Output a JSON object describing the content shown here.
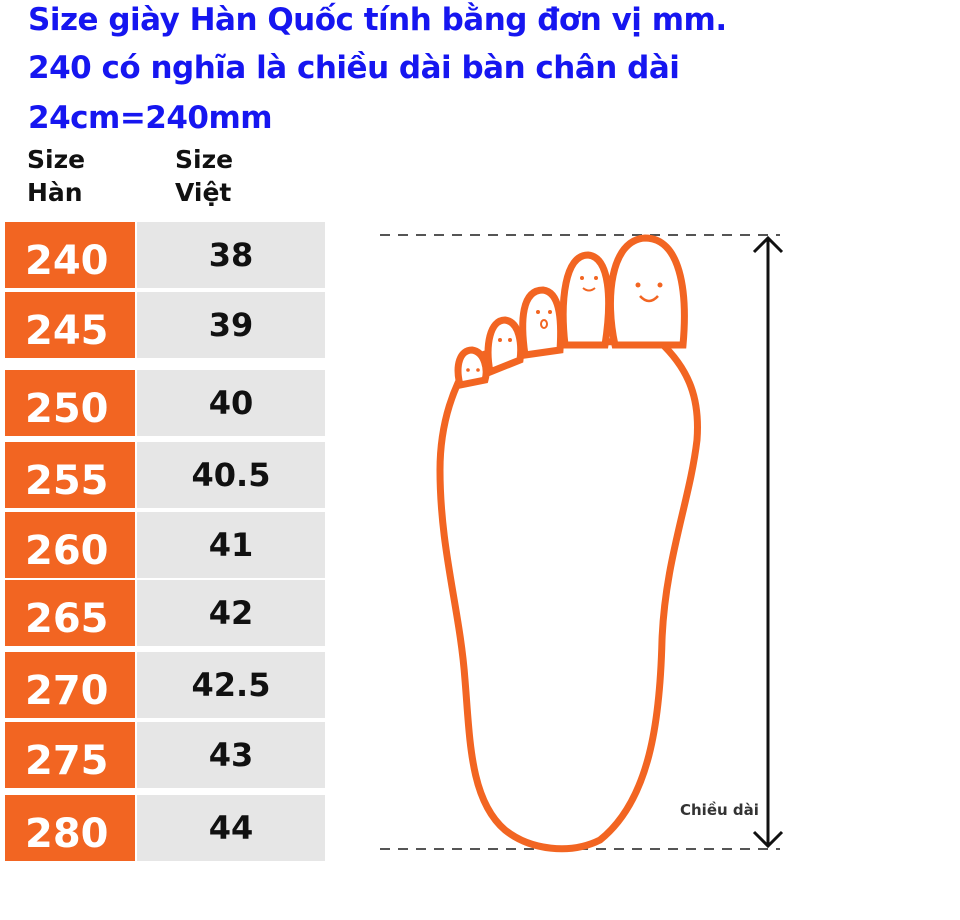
{
  "title_lines": [
    "Size giày Hàn Quốc tính bằng đơn vị mm.",
    "240 có nghĩa là chiều dài bàn chân dài",
    "24cm=240mm"
  ],
  "table": {
    "headers": {
      "korea": "Size\nHàn",
      "korea_l1": "Size",
      "korea_l2": "Hàn",
      "vietnam_l1": "Size",
      "vietnam_l2": "Việt"
    },
    "rows": [
      {
        "kr": "240",
        "vn": "38"
      },
      {
        "kr": "245",
        "vn": "39"
      },
      {
        "kr": "250",
        "vn": "40"
      },
      {
        "kr": "255",
        "vn": "40.5"
      },
      {
        "kr": "260",
        "vn": "41"
      },
      {
        "kr": "265",
        "vn": "42"
      },
      {
        "kr": "270",
        "vn": "42.5"
      },
      {
        "kr": "275",
        "vn": "43"
      },
      {
        "kr": "280",
        "vn": "44"
      }
    ]
  },
  "diagram": {
    "length_label": "Chiều dài"
  },
  "colors": {
    "title": "#1616f0",
    "korea_cell": "#f26522",
    "vietnam_cell": "#e6e6e6",
    "foot_outline": "#f26522"
  }
}
